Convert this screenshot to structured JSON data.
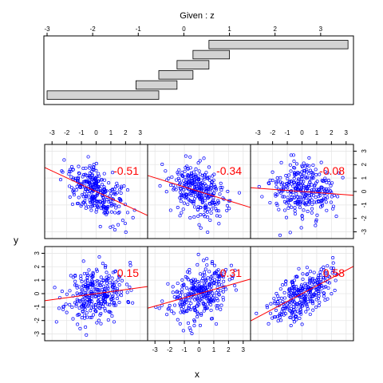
{
  "chart_data": {
    "type": "scatter",
    "title": "Given : z",
    "xlabel": "x",
    "ylabel": "y",
    "xlim": [
      -3.5,
      3.5
    ],
    "ylim": [
      -3.5,
      3.5
    ],
    "x_ticks": [
      "-3",
      "-2",
      "-1",
      "0",
      "1",
      "2",
      "3"
    ],
    "y_ticks": [
      "-3",
      "-2",
      "-1",
      "0",
      "1",
      "2",
      "3"
    ],
    "given_ticks": [
      "-3",
      "-2",
      "-1",
      "0",
      "1",
      "2",
      "3"
    ],
    "given_intervals": [
      [
        -3.0,
        -0.55
      ],
      [
        -1.05,
        -0.15
      ],
      [
        -0.55,
        0.2
      ],
      [
        -0.15,
        0.55
      ],
      [
        0.2,
        1.0
      ],
      [
        0.55,
        3.6
      ]
    ],
    "panels": [
      {
        "label": "0.15",
        "slope": 0.15,
        "n": 300,
        "seed": 11
      },
      {
        "label": "0.31",
        "slope": 0.31,
        "n": 300,
        "seed": 23
      },
      {
        "label": "0.58",
        "slope": 0.58,
        "n": 300,
        "seed": 37
      },
      {
        "label": "-0.51",
        "slope": -0.51,
        "n": 300,
        "seed": 41
      },
      {
        "label": "-0.34",
        "slope": -0.34,
        "n": 300,
        "seed": 53
      },
      {
        "label": "-0.08",
        "slope": -0.08,
        "n": 300,
        "seed": 67
      }
    ],
    "point_color": "#0000ff",
    "line_color": "#ff0000",
    "grid": true
  }
}
